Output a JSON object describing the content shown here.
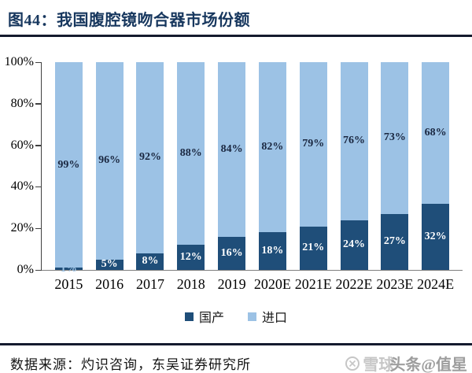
{
  "header": {
    "title": "图44：我国腹腔镜吻合器市场份额"
  },
  "chart_data": {
    "type": "bar",
    "subtype": "stacked-100-percent",
    "title": "我国腹腔镜吻合器市场份额",
    "xlabel": "",
    "ylabel": "",
    "ylim": [
      0,
      100
    ],
    "yticks": [
      "0%",
      "20%",
      "40%",
      "60%",
      "80%",
      "100%"
    ],
    "grid": false,
    "legend_position": "bottom",
    "categories": [
      "2015",
      "2016",
      "2017",
      "2018",
      "2019",
      "2020E",
      "2021E",
      "2022E",
      "2023E",
      "2024E"
    ],
    "series": [
      {
        "name": "国产",
        "color": "#1F4E79",
        "label_color": "#FFFFFF"
      },
      {
        "name": "进口",
        "color": "#9CC2E5",
        "label_color": "#1a2740"
      }
    ],
    "bars": [
      {
        "category": "2015",
        "domestic": 1,
        "imported": 99,
        "domestic_label_color": "#9CC2E5"
      },
      {
        "category": "2016",
        "domestic": 5,
        "imported": 96
      },
      {
        "category": "2017",
        "domestic": 8,
        "imported": 92
      },
      {
        "category": "2018",
        "domestic": 12,
        "imported": 88
      },
      {
        "category": "2019",
        "domestic": 16,
        "imported": 84
      },
      {
        "category": "2020E",
        "domestic": 18,
        "imported": 82
      },
      {
        "category": "2021E",
        "domestic": 21,
        "imported": 79
      },
      {
        "category": "2022E",
        "domestic": 24,
        "imported": 76
      },
      {
        "category": "2023E",
        "domestic": 27,
        "imported": 73
      },
      {
        "category": "2024E",
        "domestic": 32,
        "imported": 68
      }
    ]
  },
  "footer": {
    "source": "数据来源：灼识咨询，东吴证券研究所"
  },
  "watermark": {
    "xueqiu_label": "雪球",
    "overlay_label": "头条@值星"
  }
}
